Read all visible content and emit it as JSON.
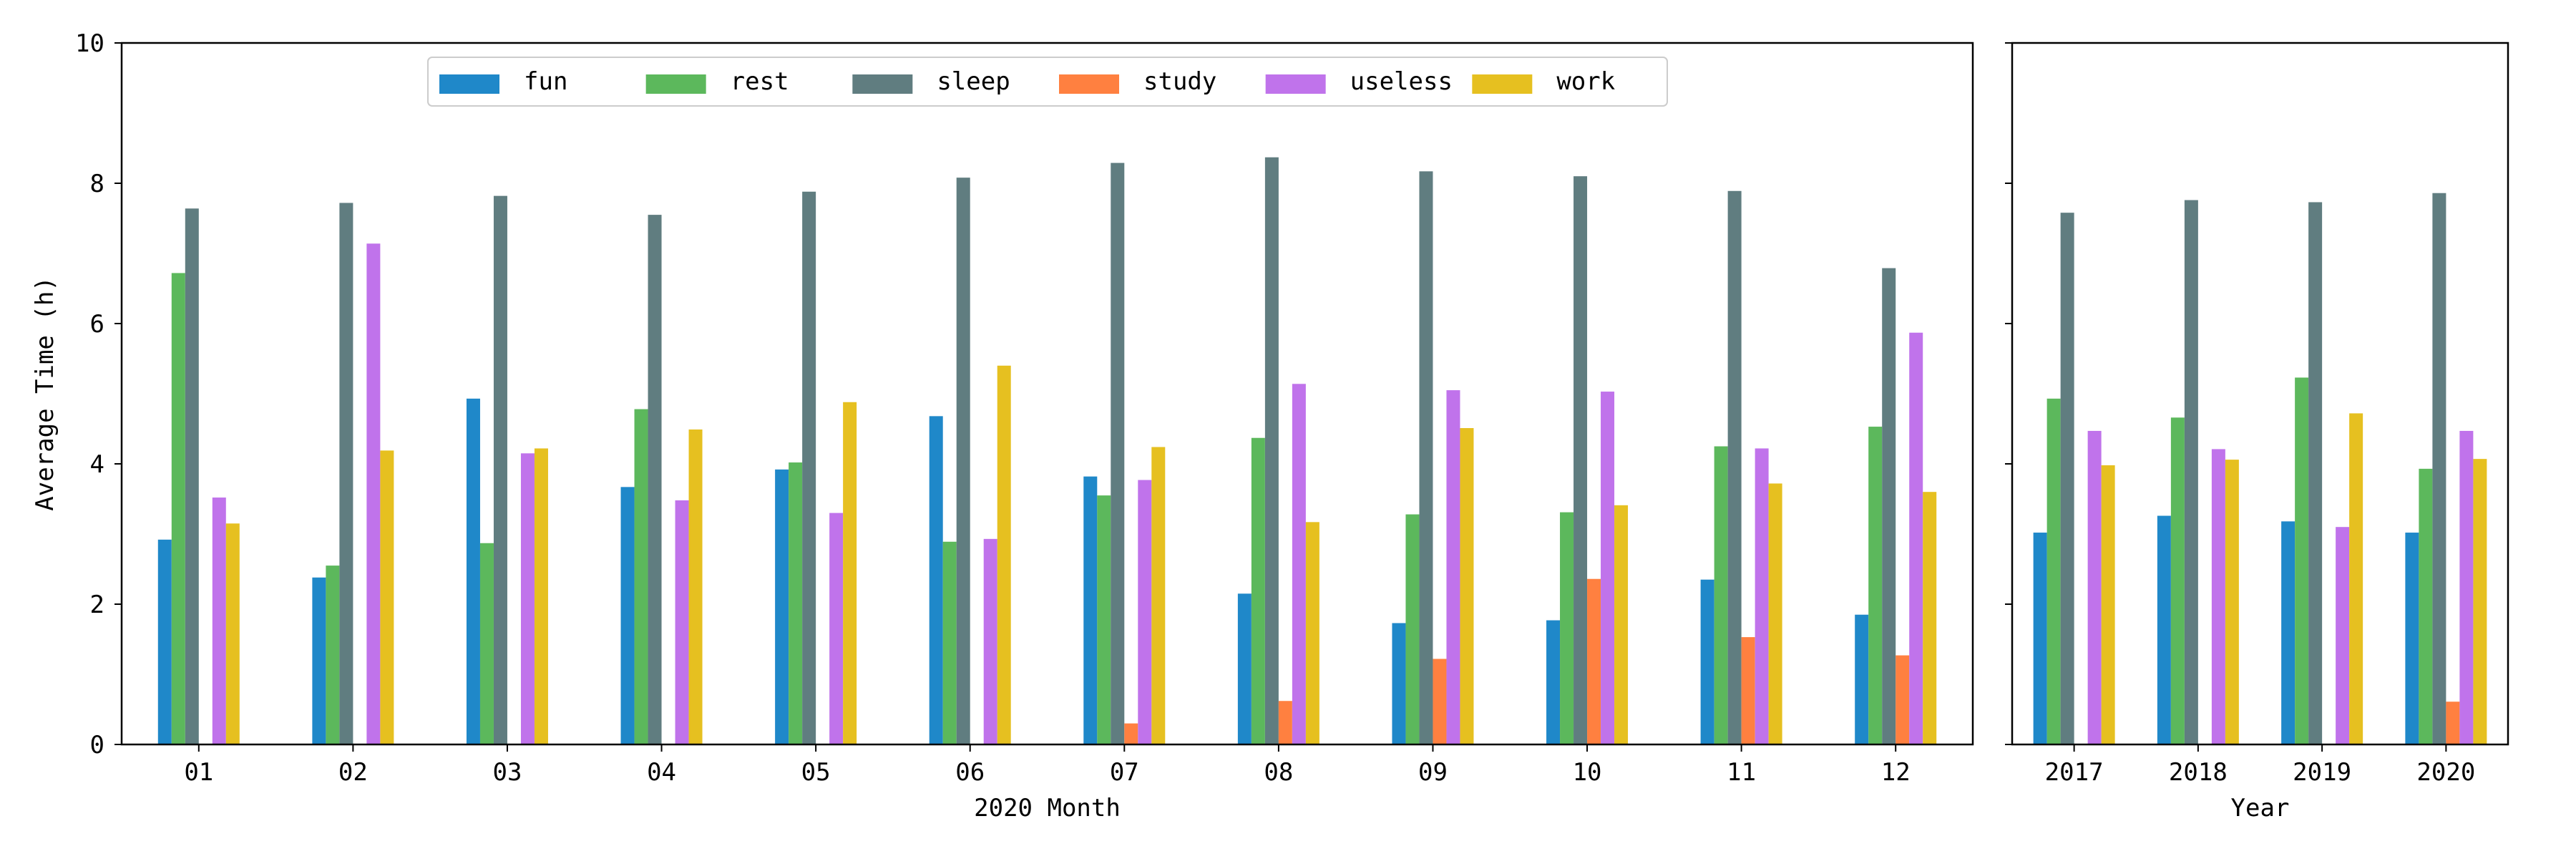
{
  "chart_data": [
    {
      "type": "bar",
      "xlabel": "2020 Month",
      "ylabel": "Average Time (h)",
      "ylim": [
        0,
        10
      ],
      "yticks": [
        "0",
        "2",
        "4",
        "6",
        "8",
        "10"
      ],
      "categories": [
        "01",
        "02",
        "03",
        "04",
        "05",
        "06",
        "07",
        "08",
        "09",
        "10",
        "11",
        "12"
      ],
      "legend": {
        "placement": "upper-center",
        "entries": [
          "fun",
          "rest",
          "sleep",
          "study",
          "useless",
          "work"
        ]
      },
      "series": [
        {
          "name": "fun",
          "color": "#1f88c9",
          "values": [
            2.92,
            2.38,
            4.93,
            3.67,
            3.92,
            4.68,
            3.82,
            2.15,
            1.73,
            1.77,
            2.35,
            1.85
          ]
        },
        {
          "name": "rest",
          "color": "#5cb85c",
          "values": [
            6.72,
            2.55,
            2.87,
            4.78,
            4.02,
            2.89,
            3.55,
            4.37,
            3.28,
            3.31,
            4.25,
            4.53
          ]
        },
        {
          "name": "sleep",
          "color": "#607d80",
          "values": [
            7.64,
            7.72,
            7.82,
            7.55,
            7.88,
            8.08,
            8.29,
            8.37,
            8.17,
            8.1,
            7.89,
            6.79
          ]
        },
        {
          "name": "study",
          "color": "#ff8040",
          "values": [
            0,
            0,
            0,
            0,
            0,
            0,
            0.3,
            0.62,
            1.22,
            2.36,
            1.53,
            1.27
          ]
        },
        {
          "name": "useless",
          "color": "#c073eb",
          "values": [
            3.52,
            7.14,
            4.15,
            3.48,
            3.3,
            2.93,
            3.77,
            5.14,
            5.05,
            5.03,
            4.22,
            5.87
          ]
        },
        {
          "name": "work",
          "color": "#e6c020",
          "values": [
            3.15,
            4.19,
            4.22,
            4.49,
            4.88,
            5.4,
            4.24,
            3.17,
            4.51,
            3.41,
            3.72,
            3.6
          ]
        }
      ]
    },
    {
      "type": "bar",
      "xlabel": "Year",
      "ylabel": "",
      "ylim": [
        0,
        10
      ],
      "categories": [
        "2017",
        "2018",
        "2019",
        "2020"
      ],
      "series": [
        {
          "name": "fun",
          "color": "#1f88c9",
          "values": [
            3.02,
            3.26,
            3.18,
            3.02
          ]
        },
        {
          "name": "rest",
          "color": "#5cb85c",
          "values": [
            4.93,
            4.66,
            5.23,
            3.93
          ]
        },
        {
          "name": "sleep",
          "color": "#607d80",
          "values": [
            7.58,
            7.76,
            7.73,
            7.86
          ]
        },
        {
          "name": "study",
          "color": "#ff8040",
          "values": [
            0,
            0,
            0,
            0.61
          ]
        },
        {
          "name": "useless",
          "color": "#c073eb",
          "values": [
            4.47,
            4.21,
            3.1,
            4.47
          ]
        },
        {
          "name": "work",
          "color": "#e6c020",
          "values": [
            3.98,
            4.06,
            4.72,
            4.07
          ]
        }
      ]
    }
  ]
}
